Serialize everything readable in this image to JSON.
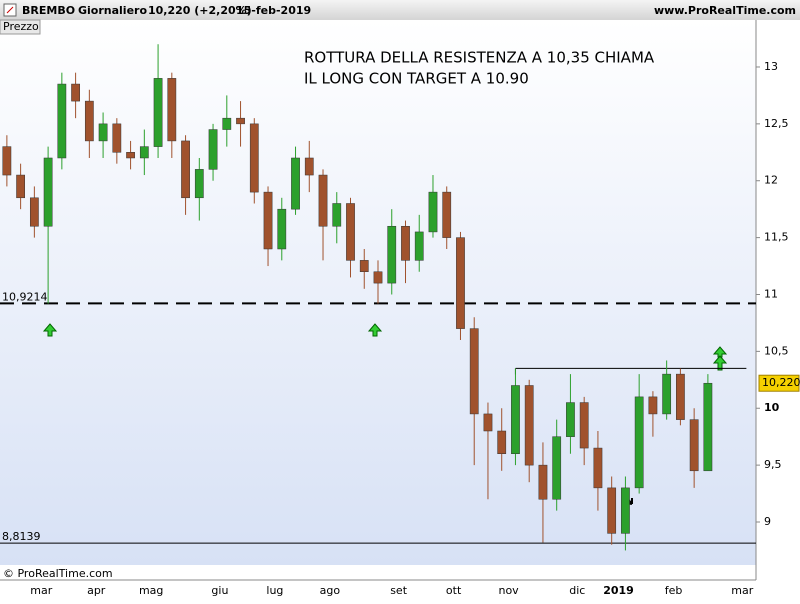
{
  "header": {
    "symbol": "BREMBO",
    "period": "Giornaliero",
    "quote": "10,220 (+2,20%)",
    "date": "15-feb-2019",
    "site": "www.ProRealTime.com",
    "panel": "Prezzo",
    "copyright": "© ProRealTime.com"
  },
  "chart_data": {
    "type": "candlestick",
    "annotation": [
      "ROTTURA DELLA RESISTENZA A 10,35 CHIAMA",
      "IL LONG CON TARGET A 10.90"
    ],
    "categories": [
      null,
      null,
      null,
      "mar",
      null,
      null,
      null,
      "apr",
      null,
      null,
      null,
      "mag",
      null,
      null,
      null,
      null,
      "giu",
      null,
      null,
      null,
      "lug",
      null,
      null,
      null,
      "ago",
      null,
      null,
      null,
      null,
      "set",
      null,
      null,
      null,
      "ott",
      null,
      null,
      null,
      "nov",
      null,
      null,
      null,
      null,
      "dic",
      null,
      null,
      "2019",
      null,
      null,
      null,
      "feb",
      null,
      null,
      null,
      null,
      "mar"
    ],
    "open": [
      12.3,
      12.05,
      11.85,
      11.6,
      12.2,
      12.85,
      12.7,
      12.35,
      12.5,
      12.25,
      12.2,
      12.3,
      12.9,
      12.35,
      11.85,
      12.1,
      12.45,
      12.55,
      12.5,
      11.9,
      11.4,
      11.75,
      12.2,
      12.05,
      11.6,
      11.8,
      11.3,
      11.2,
      11.1,
      11.6,
      11.3,
      11.55,
      11.9,
      11.5,
      10.7,
      9.95,
      9.8,
      9.6,
      10.2,
      9.5,
      9.2,
      9.75,
      10.05,
      9.65,
      9.3,
      8.9,
      9.3,
      10.1,
      9.95,
      10.3,
      9.9,
      9.45,
      null,
      null,
      null
    ],
    "high": [
      12.4,
      12.15,
      11.95,
      12.3,
      12.95,
      12.95,
      12.8,
      12.6,
      12.55,
      12.35,
      12.45,
      13.2,
      12.95,
      12.4,
      12.2,
      12.5,
      12.75,
      12.7,
      12.55,
      11.95,
      11.85,
      12.3,
      12.35,
      12.1,
      11.9,
      11.85,
      11.4,
      11.3,
      11.75,
      11.65,
      11.7,
      12.05,
      11.95,
      11.55,
      10.8,
      10.05,
      10.0,
      10.35,
      10.25,
      9.7,
      9.9,
      10.3,
      10.1,
      9.8,
      9.4,
      9.4,
      10.3,
      10.15,
      10.42,
      10.35,
      10.0,
      10.3,
      null,
      null,
      null
    ],
    "low": [
      11.95,
      11.75,
      11.5,
      10.92,
      12.1,
      12.55,
      12.2,
      12.2,
      12.15,
      12.1,
      12.05,
      12.2,
      12.2,
      11.7,
      11.65,
      12.0,
      12.3,
      12.3,
      11.8,
      11.25,
      11.3,
      11.7,
      11.9,
      11.3,
      11.45,
      11.15,
      11.05,
      10.92,
      11.0,
      11.1,
      11.2,
      11.5,
      11.4,
      10.6,
      9.5,
      9.2,
      9.45,
      9.5,
      9.35,
      8.82,
      9.1,
      9.6,
      9.5,
      9.1,
      8.8,
      8.75,
      9.25,
      9.75,
      9.9,
      9.85,
      9.3,
      9.45,
      null,
      null,
      null
    ],
    "close": [
      12.05,
      11.85,
      11.6,
      12.2,
      12.85,
      12.7,
      12.35,
      12.5,
      12.25,
      12.2,
      12.3,
      12.9,
      12.35,
      11.85,
      12.1,
      12.45,
      12.55,
      12.5,
      11.9,
      11.4,
      11.75,
      12.2,
      12.05,
      11.6,
      11.8,
      11.3,
      11.2,
      11.1,
      11.6,
      11.3,
      11.55,
      11.9,
      11.5,
      10.7,
      9.95,
      9.8,
      9.6,
      10.2,
      9.5,
      9.2,
      9.75,
      10.05,
      9.65,
      9.3,
      8.9,
      9.3,
      10.1,
      9.95,
      10.3,
      9.9,
      9.45,
      10.22,
      null,
      null,
      null
    ],
    "up_color": "#2ca02c",
    "down_color": "#a0522d",
    "ylim": [
      8.622,
      13.413
    ],
    "yticks": [
      9,
      {
        "value": 9.5,
        "label": "9,5"
      },
      10,
      {
        "value": 10.5,
        "label": "10,5"
      },
      11,
      {
        "value": 11.5,
        "label": "11,5"
      },
      12,
      {
        "value": 12.5,
        "label": "12,5"
      },
      13
    ],
    "levels": [
      {
        "value": 10.9214,
        "label": "10,9214",
        "style": "dashed"
      },
      {
        "value": 8.8139,
        "label": "8,8139",
        "style": "solid"
      }
    ],
    "resistance": 10.35,
    "last": {
      "value": 10.22,
      "label": "10,220"
    }
  }
}
